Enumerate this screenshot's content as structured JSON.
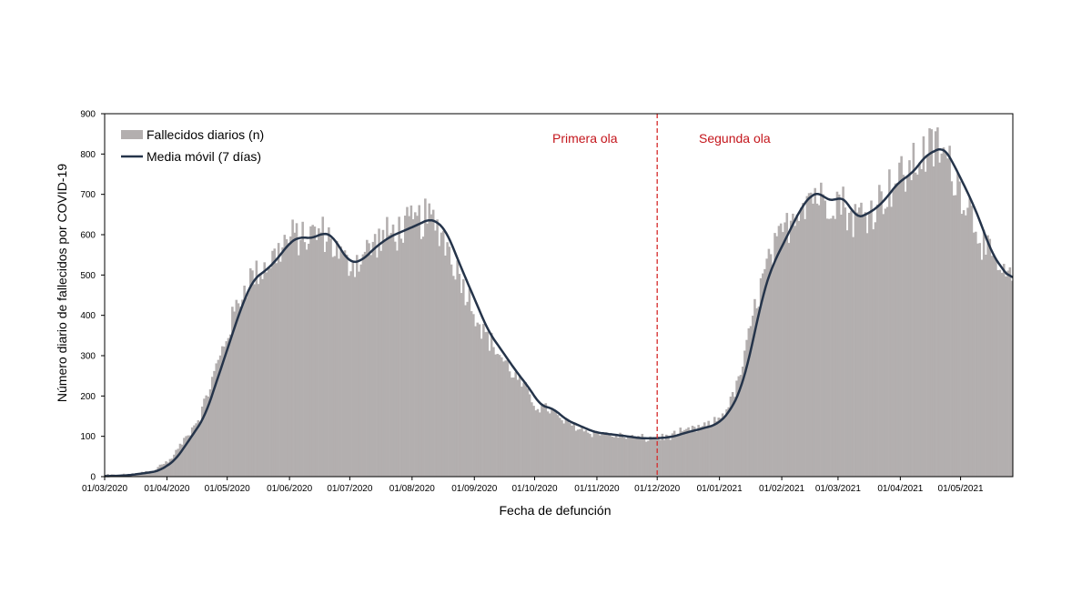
{
  "chart_data": {
    "type": "bar",
    "title": "",
    "xlabel": "Fecha de defunción",
    "ylabel": "Número diario de fallecidos por COVID-19",
    "ylim": [
      0,
      900
    ],
    "yticks": [
      0,
      100,
      200,
      300,
      400,
      500,
      600,
      700,
      800,
      900
    ],
    "xlim": [
      "2020-03-01",
      "2021-05-26"
    ],
    "xtick_dates": [
      "2020-03-01",
      "2020-04-01",
      "2020-05-01",
      "2020-06-01",
      "2020-07-01",
      "2020-08-01",
      "2020-09-01",
      "2020-10-01",
      "2020-11-01",
      "2020-12-01",
      "2021-01-01",
      "2021-02-01",
      "2021-03-01",
      "2021-04-01",
      "2021-05-01"
    ],
    "xtick_labels": [
      "01/03/2020",
      "01/04/2020",
      "01/05/2020",
      "01/06/2020",
      "01/07/2020",
      "01/08/2020",
      "01/09/2020",
      "01/10/2020",
      "01/11/2020",
      "01/12/2020",
      "01/01/2021",
      "01/02/2021",
      "01/03/2021",
      "01/04/2021",
      "01/05/2021"
    ],
    "grid": false,
    "legend_position": "top-left",
    "series": [
      {
        "name": "Fallecidos diarios (n)",
        "kind": "bar",
        "color": "#b3afaf"
      },
      {
        "name": "Media móvil (7 días)",
        "kind": "line",
        "color": "#25344a"
      }
    ],
    "moving_average_keypoints": [
      [
        "2020-03-01",
        1
      ],
      [
        "2020-03-12",
        3
      ],
      [
        "2020-03-20",
        8
      ],
      [
        "2020-03-28",
        14
      ],
      [
        "2020-04-05",
        40
      ],
      [
        "2020-04-12",
        90
      ],
      [
        "2020-04-20",
        150
      ],
      [
        "2020-04-26",
        240
      ],
      [
        "2020-05-02",
        330
      ],
      [
        "2020-05-08",
        420
      ],
      [
        "2020-05-14",
        490
      ],
      [
        "2020-05-20",
        510
      ],
      [
        "2020-05-26",
        540
      ],
      [
        "2020-06-01",
        580
      ],
      [
        "2020-06-06",
        595
      ],
      [
        "2020-06-12",
        590
      ],
      [
        "2020-06-18",
        605
      ],
      [
        "2020-06-22",
        600
      ],
      [
        "2020-06-27",
        560
      ],
      [
        "2020-07-01",
        530
      ],
      [
        "2020-07-07",
        535
      ],
      [
        "2020-07-14",
        570
      ],
      [
        "2020-07-21",
        595
      ],
      [
        "2020-07-28",
        610
      ],
      [
        "2020-08-04",
        625
      ],
      [
        "2020-08-10",
        640
      ],
      [
        "2020-08-14",
        630
      ],
      [
        "2020-08-18",
        610
      ],
      [
        "2020-08-22",
        560
      ],
      [
        "2020-08-27",
        500
      ],
      [
        "2020-09-02",
        430
      ],
      [
        "2020-09-08",
        360
      ],
      [
        "2020-09-15",
        310
      ],
      [
        "2020-09-22",
        260
      ],
      [
        "2020-09-29",
        215
      ],
      [
        "2020-10-04",
        175
      ],
      [
        "2020-10-10",
        170
      ],
      [
        "2020-10-17",
        140
      ],
      [
        "2020-10-24",
        125
      ],
      [
        "2020-10-31",
        110
      ],
      [
        "2020-11-08",
        105
      ],
      [
        "2020-11-16",
        100
      ],
      [
        "2020-11-23",
        95
      ],
      [
        "2020-11-30",
        95
      ],
      [
        "2020-12-08",
        98
      ],
      [
        "2020-12-16",
        110
      ],
      [
        "2020-12-24",
        120
      ],
      [
        "2020-12-31",
        130
      ],
      [
        "2021-01-06",
        160
      ],
      [
        "2021-01-12",
        220
      ],
      [
        "2021-01-17",
        320
      ],
      [
        "2021-01-22",
        440
      ],
      [
        "2021-01-27",
        520
      ],
      [
        "2021-02-01",
        570
      ],
      [
        "2021-02-06",
        620
      ],
      [
        "2021-02-11",
        670
      ],
      [
        "2021-02-16",
        700
      ],
      [
        "2021-02-20",
        705
      ],
      [
        "2021-02-25",
        680
      ],
      [
        "2021-03-02",
        695
      ],
      [
        "2021-03-06",
        680
      ],
      [
        "2021-03-10",
        640
      ],
      [
        "2021-03-15",
        650
      ],
      [
        "2021-03-20",
        665
      ],
      [
        "2021-03-25",
        690
      ],
      [
        "2021-03-31",
        730
      ],
      [
        "2021-04-05",
        745
      ],
      [
        "2021-04-10",
        770
      ],
      [
        "2021-04-14",
        800
      ],
      [
        "2021-04-18",
        805
      ],
      [
        "2021-04-22",
        820
      ],
      [
        "2021-04-26",
        790
      ],
      [
        "2021-05-01",
        740
      ],
      [
        "2021-05-06",
        690
      ],
      [
        "2021-05-11",
        630
      ],
      [
        "2021-05-16",
        560
      ],
      [
        "2021-05-21",
        520
      ],
      [
        "2021-05-26",
        490
      ]
    ],
    "vertical_reference": {
      "date": "2020-12-01",
      "style": "dashed",
      "color": "#d52b2b"
    },
    "annotations": [
      {
        "text": "Primera ola",
        "side": "left",
        "color": "#c4161c"
      },
      {
        "text": "Segunda ola",
        "side": "right",
        "color": "#c4161c"
      }
    ]
  }
}
